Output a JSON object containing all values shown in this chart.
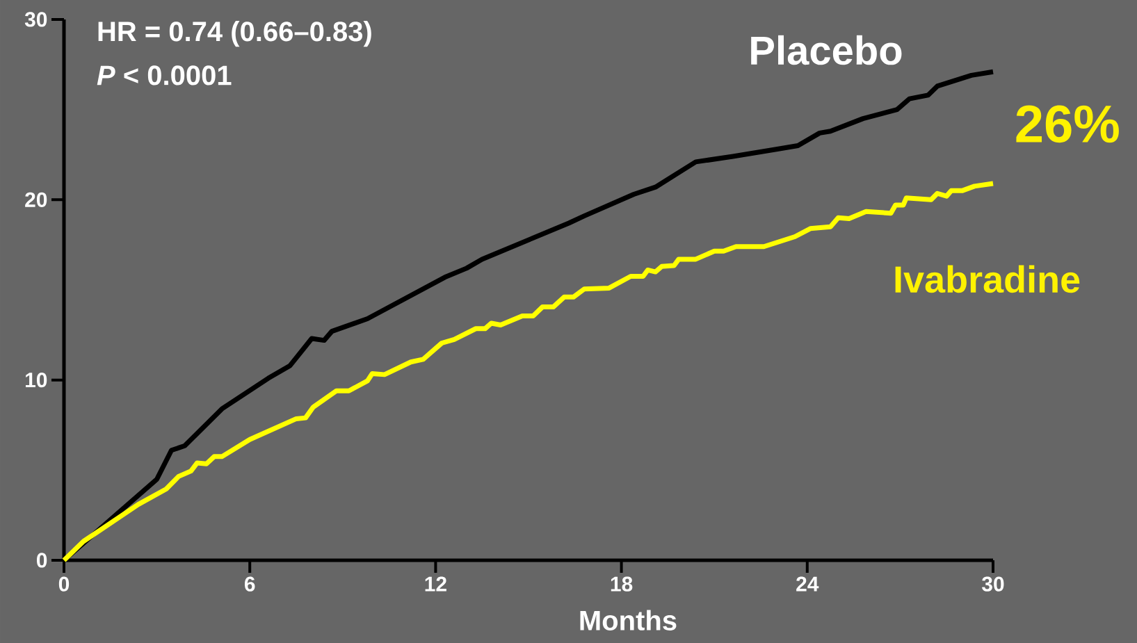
{
  "chart_data": {
    "type": "line",
    "xlabel": "Months",
    "annotations": [
      "HR = 0.74 (0.66–0.83)",
      "*P* < 0.0001",
      "26%"
    ],
    "xlim": [
      0,
      30
    ],
    "xticks": [
      0,
      6,
      12,
      18,
      24,
      30
    ],
    "ylim": [
      0,
      30
    ],
    "yticks": [
      0,
      10,
      20,
      30
    ],
    "grid": false,
    "series": [
      {
        "name": "Placebo",
        "color": "#000000",
        "x": [
          0,
          3,
          3.47,
          3.9,
          5.1,
          6.6,
          7.3,
          8.0,
          8.4,
          8.65,
          9.8,
          12.3,
          13.0,
          13.5,
          16.3,
          16.8,
          18.4,
          19.1,
          20.4,
          21.6,
          23.0,
          23.7,
          24.4,
          24.75,
          25.8,
          26.9,
          27.3,
          27.9,
          28.2,
          29.3,
          30
        ],
        "values": [
          0,
          4.5,
          6.1,
          6.35,
          8.4,
          10.1,
          10.8,
          12.3,
          12.2,
          12.7,
          13.4,
          15.7,
          16.2,
          16.7,
          18.7,
          19.1,
          20.3,
          20.7,
          22.1,
          22.4,
          22.8,
          23.0,
          23.7,
          23.8,
          24.5,
          25.0,
          25.6,
          25.8,
          26.3,
          26.9,
          27.1
        ]
      },
      {
        "name": "Ivabradine",
        "color": "#ffff00",
        "x": [
          0,
          0.63,
          2.4,
          3.3,
          3.7,
          4.1,
          4.3,
          4.6,
          4.85,
          5.1,
          6.0,
          7.5,
          7.8,
          8.05,
          8.8,
          9.2,
          9.8,
          9.95,
          10.35,
          11.2,
          11.6,
          12.2,
          12.6,
          13.3,
          13.6,
          13.8,
          14.1,
          14.8,
          15.15,
          15.45,
          15.8,
          16.15,
          16.45,
          16.8,
          17.6,
          18.3,
          18.7,
          18.85,
          19.1,
          19.3,
          19.7,
          19.85,
          20.4,
          21.0,
          21.3,
          21.7,
          22.6,
          23.6,
          24.1,
          24.75,
          25.0,
          25.35,
          25.9,
          26.7,
          26.85,
          27.1,
          27.2,
          28.0,
          28.2,
          28.5,
          28.65,
          29.0,
          29.4,
          30.0
        ],
        "values": [
          0,
          1.05,
          3.1,
          3.95,
          4.65,
          4.95,
          5.4,
          5.35,
          5.75,
          5.75,
          6.7,
          7.85,
          7.9,
          8.5,
          9.4,
          9.4,
          9.95,
          10.35,
          10.3,
          11.0,
          11.15,
          12.05,
          12.25,
          12.85,
          12.85,
          13.15,
          13.05,
          13.55,
          13.55,
          14.05,
          14.05,
          14.6,
          14.6,
          15.05,
          15.1,
          15.75,
          15.75,
          16.1,
          16.0,
          16.3,
          16.35,
          16.7,
          16.7,
          17.15,
          17.15,
          17.4,
          17.4,
          17.95,
          18.4,
          18.5,
          19.0,
          18.95,
          19.35,
          19.25,
          19.7,
          19.7,
          20.1,
          20.0,
          20.35,
          20.2,
          20.5,
          20.5,
          20.75,
          20.9
        ]
      }
    ]
  }
}
